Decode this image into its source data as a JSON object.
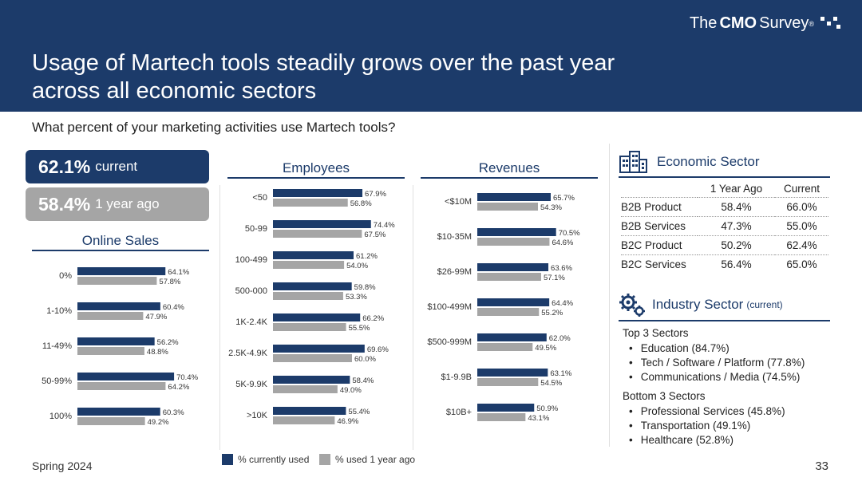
{
  "header": {
    "logo": {
      "part1": "The",
      "part2": "CMO",
      "part3": "Survey",
      "mark": "®"
    },
    "title": "Usage of Martech tools steadily grows over the past year across all economic sectors"
  },
  "question": "What percent of your marketing activities use Martech tools?",
  "summary": {
    "current_value": "62.1%",
    "current_label": "current",
    "prior_value": "58.4%",
    "prior_label": "1 year ago"
  },
  "colors": {
    "current": "#1c3b6a",
    "prior": "#a5a5a5"
  },
  "chart_data": [
    {
      "type": "bar",
      "title": "Online Sales",
      "categories": [
        "0%",
        "1-10%",
        "11-49%",
        "50-99%",
        "100%"
      ],
      "series": [
        {
          "name": "% currently used",
          "values": [
            64.1,
            60.4,
            56.2,
            70.4,
            60.3
          ]
        },
        {
          "name": "% used 1 year ago",
          "values": [
            57.8,
            47.9,
            48.8,
            64.2,
            49.2
          ]
        }
      ],
      "xlim": [
        0,
        100
      ]
    },
    {
      "type": "bar",
      "title": "Employees",
      "categories": [
        "<50",
        "50-99",
        "100-499",
        "500-000",
        "1K-2.4K",
        "2.5K-4.9K",
        "5K-9.9K",
        ">10K"
      ],
      "series": [
        {
          "name": "% currently used",
          "values": [
            67.9,
            74.4,
            61.2,
            59.8,
            66.2,
            69.6,
            58.4,
            55.4
          ]
        },
        {
          "name": "% used 1 year ago",
          "values": [
            56.8,
            67.5,
            54.0,
            53.3,
            55.5,
            60.0,
            49.0,
            46.9
          ]
        }
      ],
      "xlim": [
        0,
        100
      ]
    },
    {
      "type": "bar",
      "title": "Revenues",
      "categories": [
        "<$10M",
        "$10-35M",
        "$26-99M",
        "$100-499M",
        "$500-999M",
        "$1-9.9B",
        "$10B+"
      ],
      "series": [
        {
          "name": "% currently used",
          "values": [
            65.7,
            70.5,
            63.6,
            64.4,
            62.0,
            63.1,
            50.9
          ]
        },
        {
          "name": "% used 1 year ago",
          "values": [
            54.3,
            64.6,
            57.1,
            55.2,
            49.5,
            54.5,
            43.1
          ]
        }
      ],
      "xlim": [
        0,
        100
      ]
    }
  ],
  "legend": {
    "current": "% currently used",
    "prior": "% used 1 year ago"
  },
  "economic_sector": {
    "title": "Economic Sector",
    "columns": [
      "",
      "1 Year Ago",
      "Current"
    ],
    "rows": [
      {
        "name": "B2B Product",
        "prior": "58.4%",
        "current": "66.0%"
      },
      {
        "name": "B2B Services",
        "prior": "47.3%",
        "current": "55.0%"
      },
      {
        "name": "B2C Product",
        "prior": "50.2%",
        "current": "62.4%"
      },
      {
        "name": "B2C Services",
        "prior": "56.4%",
        "current": "65.0%"
      }
    ]
  },
  "industry_sector": {
    "title": "Industry Sector",
    "subtitle": "(current)",
    "top_label": "Top 3 Sectors",
    "top": [
      "Education (84.7%)",
      "Tech / Software / Platform (77.8%)",
      "Communications / Media (74.5%)"
    ],
    "bottom_label": "Bottom 3 Sectors",
    "bottom": [
      "Professional Services (45.8%)",
      "Transportation (49.1%)",
      "Healthcare (52.8%)"
    ]
  },
  "footer": {
    "edition": "Spring 2024",
    "page": "33"
  }
}
